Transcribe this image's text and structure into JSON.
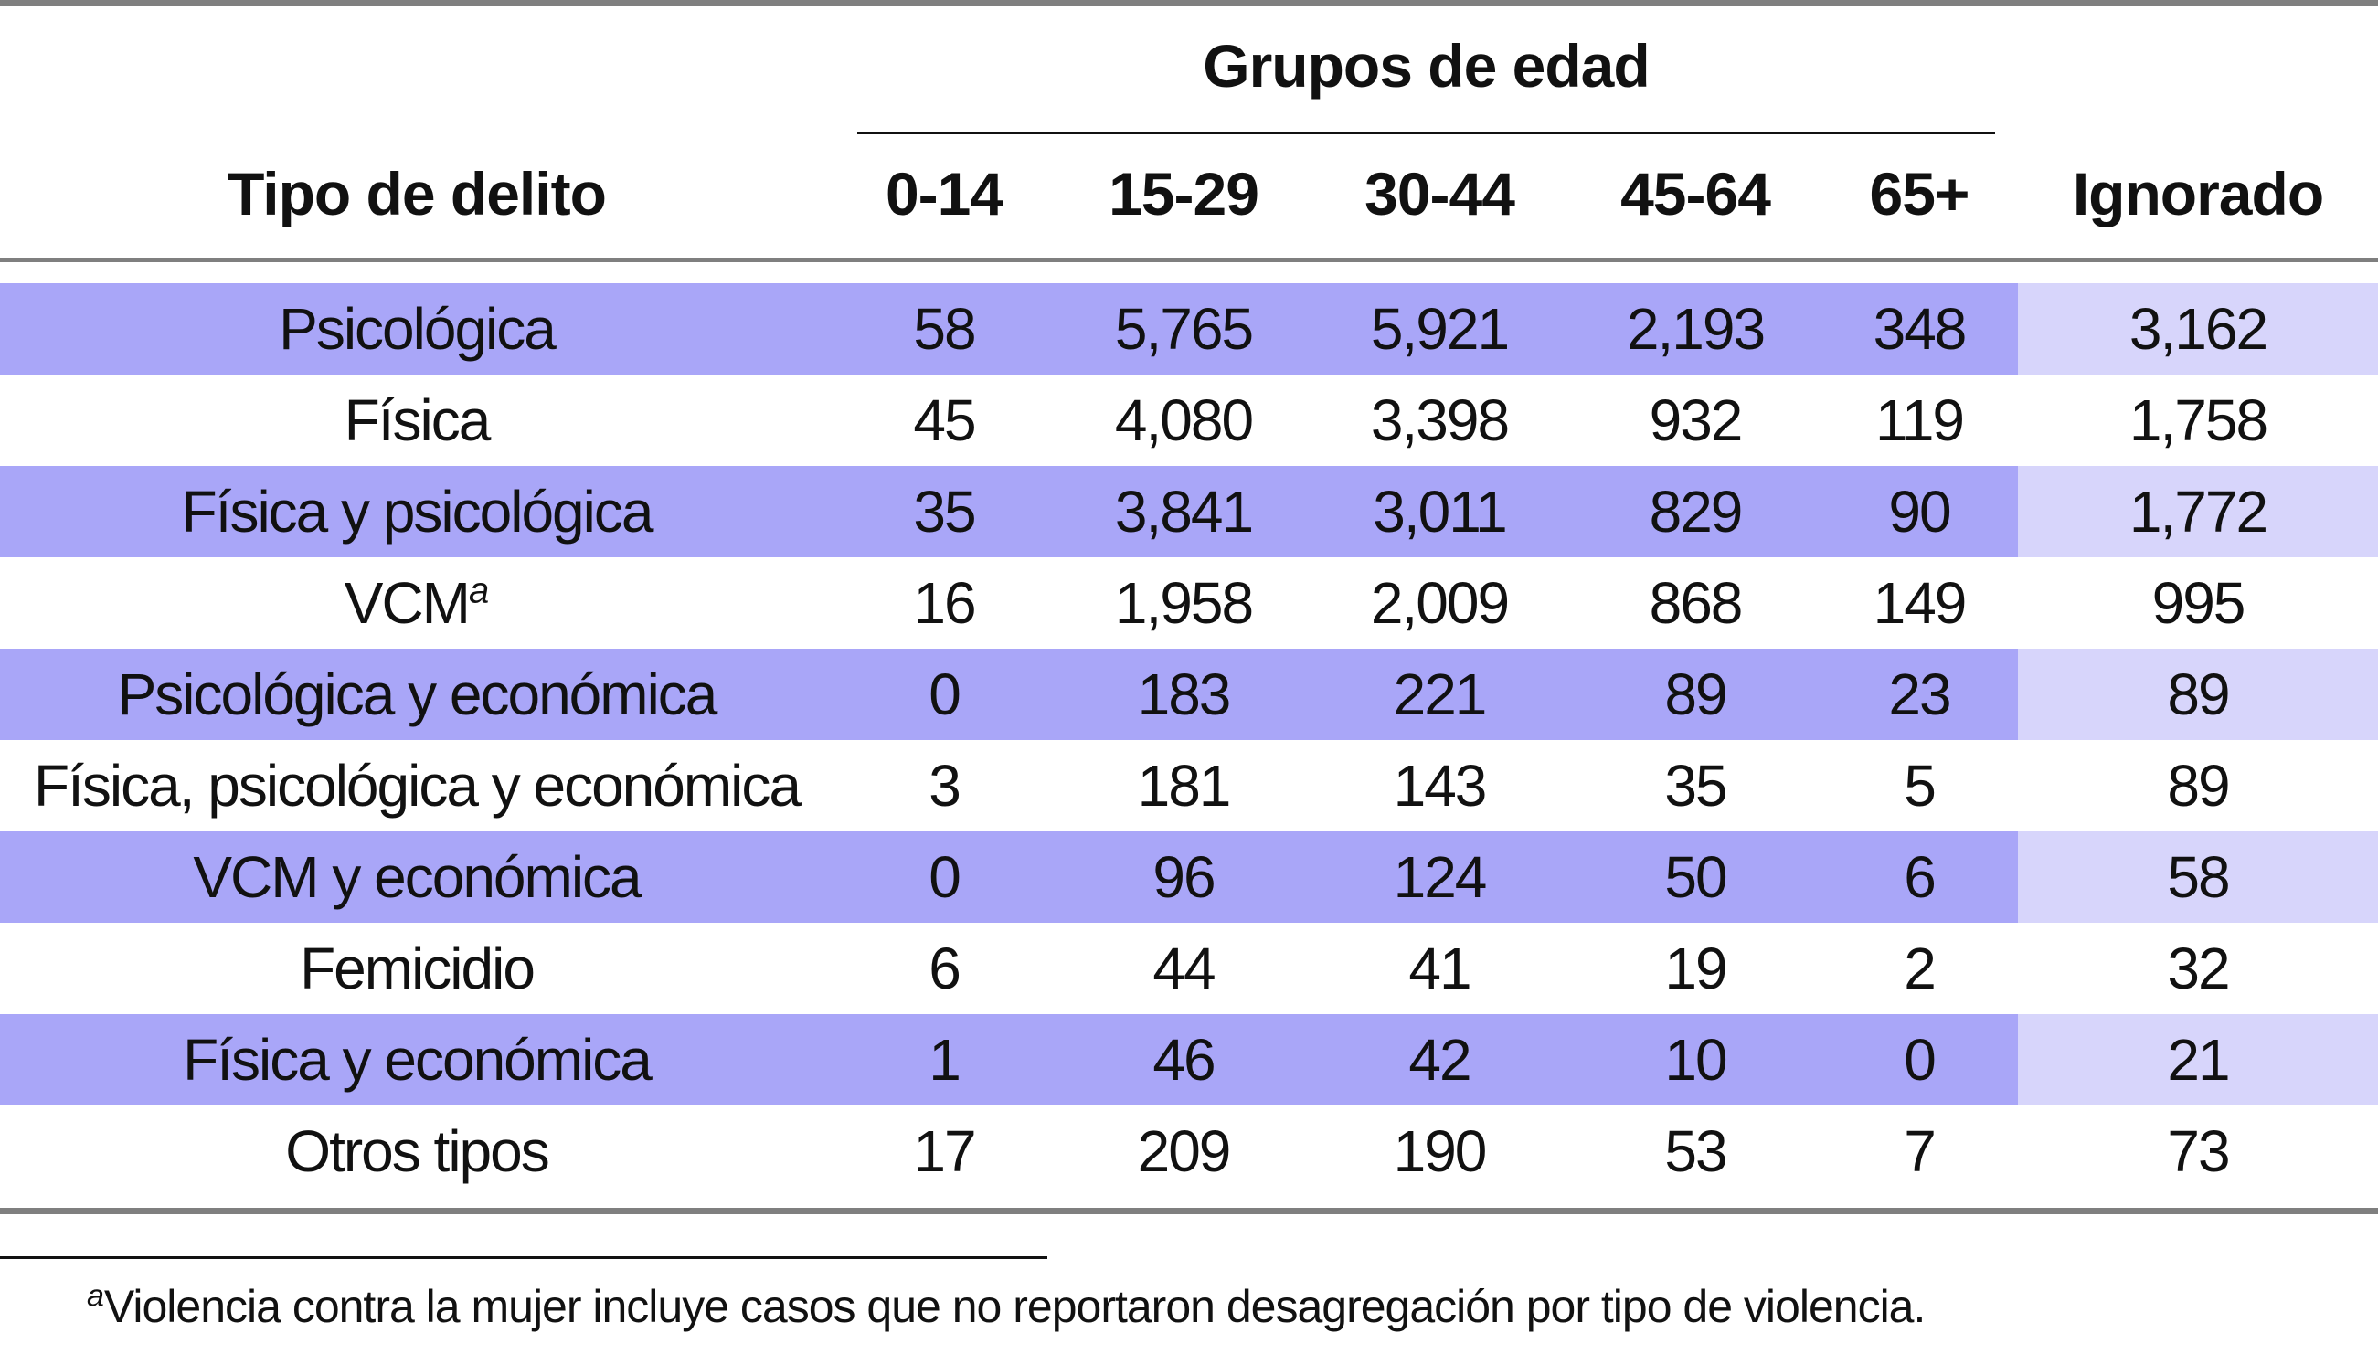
{
  "header": {
    "type_label": "Tipo de delito",
    "group_label": "Grupos de edad",
    "columns": [
      "0-14",
      "15-29",
      "30-44",
      "45-64",
      "65+"
    ],
    "ignored_label": "Ignorado"
  },
  "rows": [
    {
      "type": "Psicológica",
      "sup": "",
      "values": [
        "58",
        "5,765",
        "5,921",
        "2,193",
        "348"
      ],
      "ignored": "3,162"
    },
    {
      "type": "Física",
      "sup": "",
      "values": [
        "45",
        "4,080",
        "3,398",
        "932",
        "119"
      ],
      "ignored": "1,758"
    },
    {
      "type": "Física y psicológica",
      "sup": "",
      "values": [
        "35",
        "3,841",
        "3,011",
        "829",
        "90"
      ],
      "ignored": "1,772"
    },
    {
      "type": "VCM",
      "sup": "a",
      "values": [
        "16",
        "1,958",
        "2,009",
        "868",
        "149"
      ],
      "ignored": "995"
    },
    {
      "type": "Psicológica y económica",
      "sup": "",
      "values": [
        "0",
        "183",
        "221",
        "89",
        "23"
      ],
      "ignored": "89"
    },
    {
      "type": "Física, psicológica y económica",
      "sup": "",
      "values": [
        "3",
        "181",
        "143",
        "35",
        "5"
      ],
      "ignored": "89"
    },
    {
      "type": "VCM y económica",
      "sup": "",
      "values": [
        "0",
        "96",
        "124",
        "50",
        "6"
      ],
      "ignored": "58"
    },
    {
      "type": "Femicidio",
      "sup": "",
      "values": [
        "6",
        "44",
        "41",
        "19",
        "2"
      ],
      "ignored": "32"
    },
    {
      "type": "Física y económica",
      "sup": "",
      "values": [
        "1",
        "46",
        "42",
        "10",
        "0"
      ],
      "ignored": "21"
    },
    {
      "type": "Otros tipos",
      "sup": "",
      "values": [
        "17",
        "209",
        "190",
        "53",
        "7"
      ],
      "ignored": "73"
    }
  ],
  "footnote": {
    "marker": "a",
    "text": "Violencia contra la mujer incluye casos que no reportaron desagregación por tipo de violencia."
  },
  "colors": {
    "row_shade": "#a9a6f8",
    "ignored_shade": "#d7d5fb",
    "rule": "#7f7f7f"
  }
}
